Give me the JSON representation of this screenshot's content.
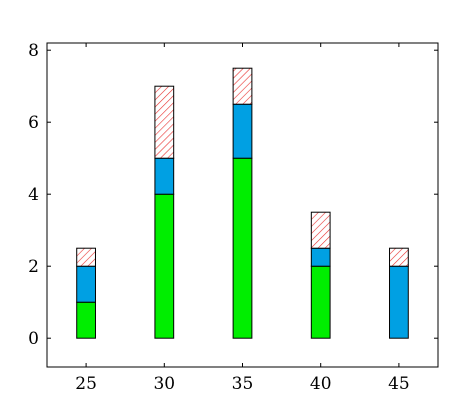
{
  "chart_data": {
    "type": "bar",
    "stacked": true,
    "x": [
      25,
      30,
      35,
      40,
      45
    ],
    "series": [
      {
        "values": [
          1,
          4,
          5,
          2,
          0
        ],
        "color": "#00ee00",
        "fill": "solid"
      },
      {
        "values": [
          1,
          1,
          1.5,
          0.5,
          2
        ],
        "color": "#00a0e3",
        "fill": "solid"
      },
      {
        "values": [
          0.5,
          2,
          1,
          1,
          0.5
        ],
        "color": "#e8312f",
        "fill": "hatched"
      }
    ],
    "xlim": [
      22.5,
      47.5
    ],
    "ylim": [
      -0.8,
      8.2
    ],
    "xticks": [
      "25",
      "30",
      "35",
      "40",
      "45"
    ],
    "yticks": [
      "0",
      "2",
      "4",
      "6",
      "8"
    ],
    "bar_width": 1.2,
    "grid": false,
    "title": "",
    "xlabel": "",
    "ylabel": ""
  }
}
